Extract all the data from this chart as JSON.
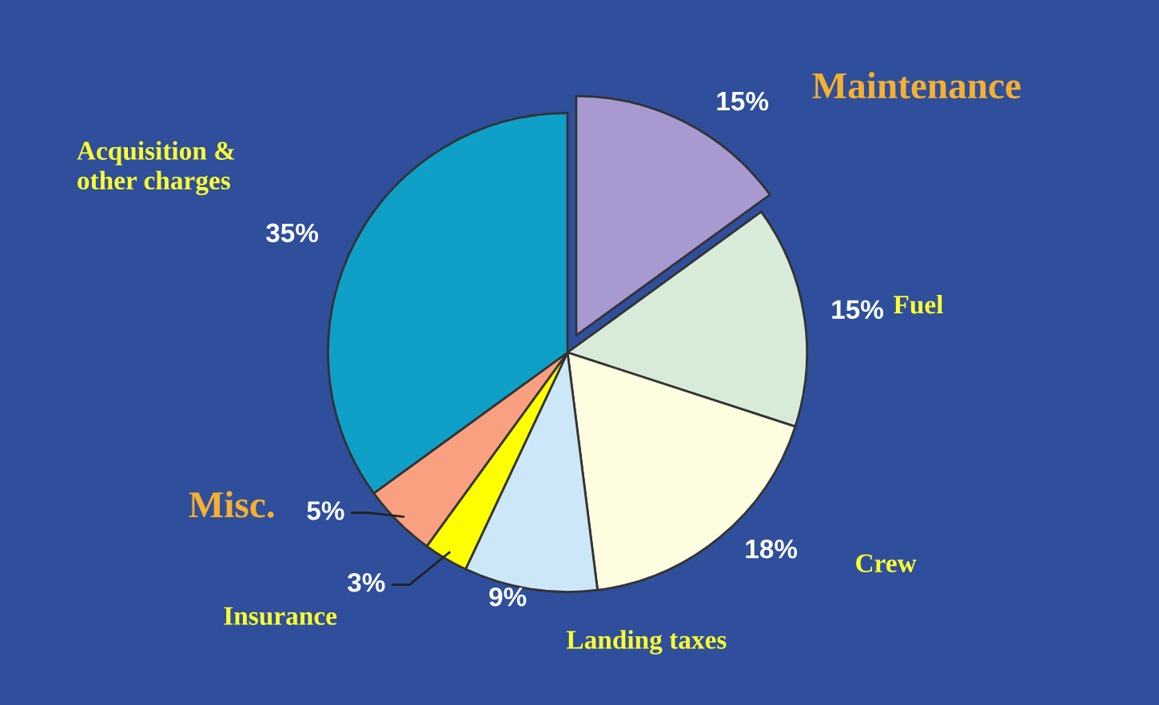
{
  "chart_data": {
    "type": "pie",
    "categories": [
      "Maintenance",
      "Fuel",
      "Crew",
      "Landing taxes",
      "Insurance",
      "Misc.",
      "Acquisition &\nother charges"
    ],
    "values": [
      15,
      15,
      18,
      9,
      3,
      5,
      35
    ],
    "value_labels": [
      "15%",
      "15%",
      "18%",
      "9%",
      "3%",
      "5%",
      "35%"
    ],
    "colors": [
      "#a89ad0",
      "#d8ead8",
      "#fffde0",
      "#cce8f8",
      "#ffff00",
      "#f8a080",
      "#0fa0c8"
    ]
  }
}
